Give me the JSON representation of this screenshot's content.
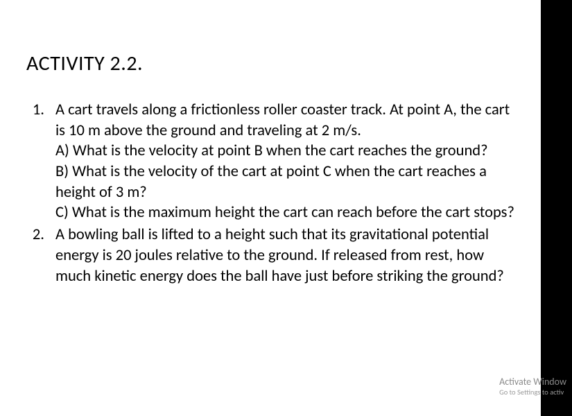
{
  "layout": {
    "page_bg": "#ffffff",
    "outer_bg": "#000000",
    "text_color": "#000000",
    "watermark_color1": "#8a8a8a",
    "watermark_color2": "#9a9a9a",
    "title_fontsize": 30,
    "body_fontsize": 22.5,
    "watermark_fontsize1": 14,
    "watermark_fontsize2": 10.5
  },
  "title": "ACTIVITY 2.2.",
  "questions": [
    {
      "number": "1.",
      "intro": "A cart travels along a frictionless roller coaster track. At point A, the cart is 10 m above the ground and traveling at 2 m/s.",
      "parts": [
        "A) What is the velocity at point B when the cart reaches the ground?",
        "B) What is the velocity of the cart at point C when the cart reaches a height of 3 m?",
        "C) What is the maximum height the cart can reach before the cart stops?"
      ]
    },
    {
      "number": "2.",
      "intro": "A bowling ball is lifted to a height such that its gravitational potential energy is 20 joules relative to the ground. If released from rest, how much kinetic energy does the ball have just before striking the ground?",
      "parts": []
    }
  ],
  "watermark": {
    "line1": "Activate Window",
    "line2": "Go to Settings to activ"
  }
}
